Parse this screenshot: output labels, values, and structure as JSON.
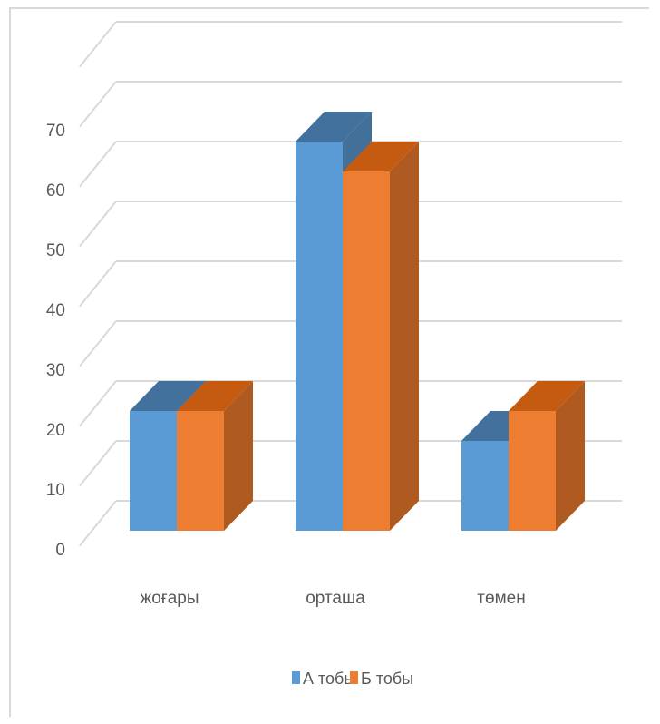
{
  "chart_data": {
    "type": "bar",
    "style": "3d-clustered-column",
    "categories": [
      "жоғары",
      "орташа",
      "төмен"
    ],
    "series": [
      {
        "name": "А тобы",
        "values": [
          20,
          65,
          15
        ],
        "color": "#5b9bd5",
        "top_color": "#41719c"
      },
      {
        "name": "Б тобы",
        "values": [
          20,
          60,
          20
        ],
        "color": "#ed7d31",
        "side_color": "#ae5a21",
        "top_color": "#c55a11"
      }
    ],
    "y_ticks": [
      "0",
      "10",
      "20",
      "30",
      "40",
      "50",
      "60",
      "70"
    ],
    "ylim": [
      0,
      80
    ],
    "grid": true,
    "legend": "bottom",
    "gridline_color": "#d9d9d9"
  }
}
